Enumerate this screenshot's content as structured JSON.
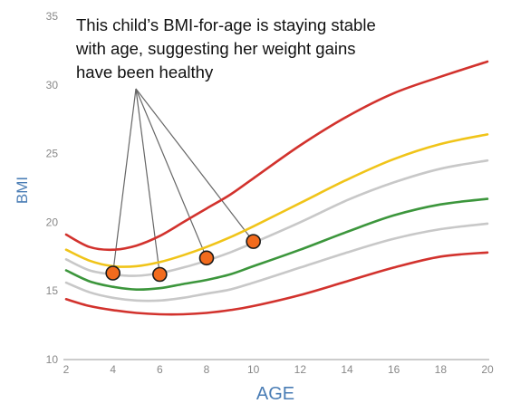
{
  "chart_data": {
    "type": "line",
    "xlabel": "AGE",
    "ylabel": "BMI",
    "xlim": [
      2,
      20
    ],
    "ylim": [
      10,
      35
    ],
    "x_ticks": [
      "2",
      "4",
      "6",
      "8",
      "10",
      "12",
      "14",
      "16",
      "18",
      "20"
    ],
    "y_ticks": [
      "10",
      "15",
      "20",
      "25",
      "30",
      "35"
    ],
    "annotation": [
      "This child’s BMI-for-age is staying stable",
      "with age, suggesting her weight gains",
      "have been healthy"
    ],
    "curves": [
      {
        "color": "#d2322d",
        "x": [
          2,
          3,
          4,
          5,
          6,
          7,
          8,
          9,
          10,
          12,
          14,
          16,
          18,
          20
        ],
        "values": [
          19.1,
          18.2,
          18.0,
          18.3,
          19.0,
          20.0,
          21.0,
          22.0,
          23.2,
          25.6,
          27.7,
          29.4,
          30.6,
          31.7
        ]
      },
      {
        "color": "#f0c419",
        "x": [
          2,
          3,
          4,
          5,
          6,
          7,
          8,
          9,
          10,
          12,
          14,
          16,
          18,
          20
        ],
        "values": [
          18.0,
          17.2,
          16.8,
          16.8,
          17.1,
          17.6,
          18.2,
          18.9,
          19.7,
          21.4,
          23.1,
          24.6,
          25.7,
          26.4
        ]
      },
      {
        "color": "#c8c8c8",
        "x": [
          2,
          3,
          4,
          5,
          6,
          7,
          8,
          9,
          10,
          12,
          14,
          16,
          18,
          20
        ],
        "values": [
          17.3,
          16.5,
          16.2,
          16.1,
          16.3,
          16.7,
          17.2,
          17.8,
          18.5,
          20.0,
          21.6,
          22.9,
          23.9,
          24.5
        ]
      },
      {
        "color": "#3c963c",
        "x": [
          2,
          3,
          4,
          5,
          6,
          7,
          8,
          9,
          10,
          12,
          14,
          16,
          18,
          20
        ],
        "values": [
          16.5,
          15.7,
          15.3,
          15.1,
          15.2,
          15.5,
          15.8,
          16.2,
          16.8,
          18.0,
          19.3,
          20.5,
          21.3,
          21.7
        ]
      },
      {
        "color": "#c8c8c8",
        "x": [
          2,
          3,
          4,
          5,
          6,
          7,
          8,
          9,
          10,
          12,
          14,
          16,
          18,
          20
        ],
        "values": [
          15.6,
          14.9,
          14.5,
          14.3,
          14.3,
          14.5,
          14.8,
          15.1,
          15.6,
          16.7,
          17.8,
          18.8,
          19.5,
          19.9
        ]
      },
      {
        "color": "#d2322d",
        "x": [
          2,
          3,
          4,
          5,
          6,
          7,
          8,
          9,
          10,
          12,
          14,
          16,
          18,
          20
        ],
        "values": [
          14.4,
          13.9,
          13.6,
          13.4,
          13.3,
          13.3,
          13.4,
          13.6,
          13.9,
          14.7,
          15.7,
          16.7,
          17.5,
          17.8
        ]
      }
    ],
    "points": [
      {
        "x": 4.0,
        "y": 16.3
      },
      {
        "x": 6.0,
        "y": 16.2
      },
      {
        "x": 8.0,
        "y": 17.4
      },
      {
        "x": 10.0,
        "y": 18.6
      }
    ],
    "point_color": "#f26b1d",
    "grid": false
  }
}
